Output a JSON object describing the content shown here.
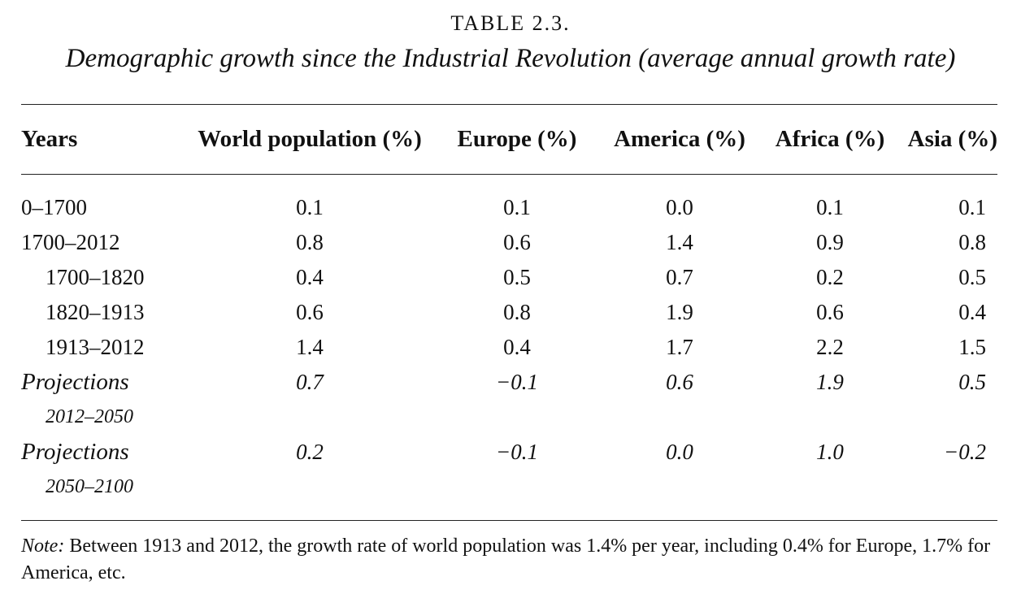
{
  "caption": {
    "label": "TABLE 2.3.",
    "title": "Demographic growth since the Industrial Revolution (average annual growth rate)"
  },
  "table": {
    "headers": {
      "years": "Years",
      "world": "World population (%)",
      "europe": "Europe (%)",
      "america": "America (%)",
      "africa": "Africa (%)",
      "asia": "Asia (%)"
    },
    "rows": [
      {
        "years": "0–1700",
        "world": "0.1",
        "europe": "0.1",
        "america": "0.0",
        "africa": "0.1",
        "asia": "0.1"
      },
      {
        "years": "1700–2012",
        "world": "0.8",
        "europe": "0.6",
        "america": "1.4",
        "africa": "0.9",
        "asia": "0.8"
      },
      {
        "years": "1700–1820",
        "world": "0.4",
        "europe": "0.5",
        "america": "0.7",
        "africa": "0.2",
        "asia": "0.5"
      },
      {
        "years": "1820–1913",
        "world": "0.6",
        "europe": "0.8",
        "america": "1.9",
        "africa": "0.6",
        "asia": "0.4"
      },
      {
        "years": "1913–2012",
        "world": "1.4",
        "europe": "0.4",
        "america": "1.7",
        "africa": "2.2",
        "asia": "1.5"
      }
    ],
    "projections": [
      {
        "label": "Projections",
        "period": "2012–2050",
        "world": "0.7",
        "europe": "−0.1",
        "america": "0.6",
        "africa": "1.9",
        "asia": "0.5"
      },
      {
        "label": "Projections",
        "period": "2050–2100",
        "world": "0.2",
        "europe": "−0.1",
        "america": "0.0",
        "africa": "1.0",
        "asia": "−0.2"
      }
    ]
  },
  "note": {
    "label": "Note:",
    "text": " Between 1913 and 2012, the growth rate of world population was 1.4% per year, including 0.4% for Europe, 1.7% for America, etc."
  }
}
